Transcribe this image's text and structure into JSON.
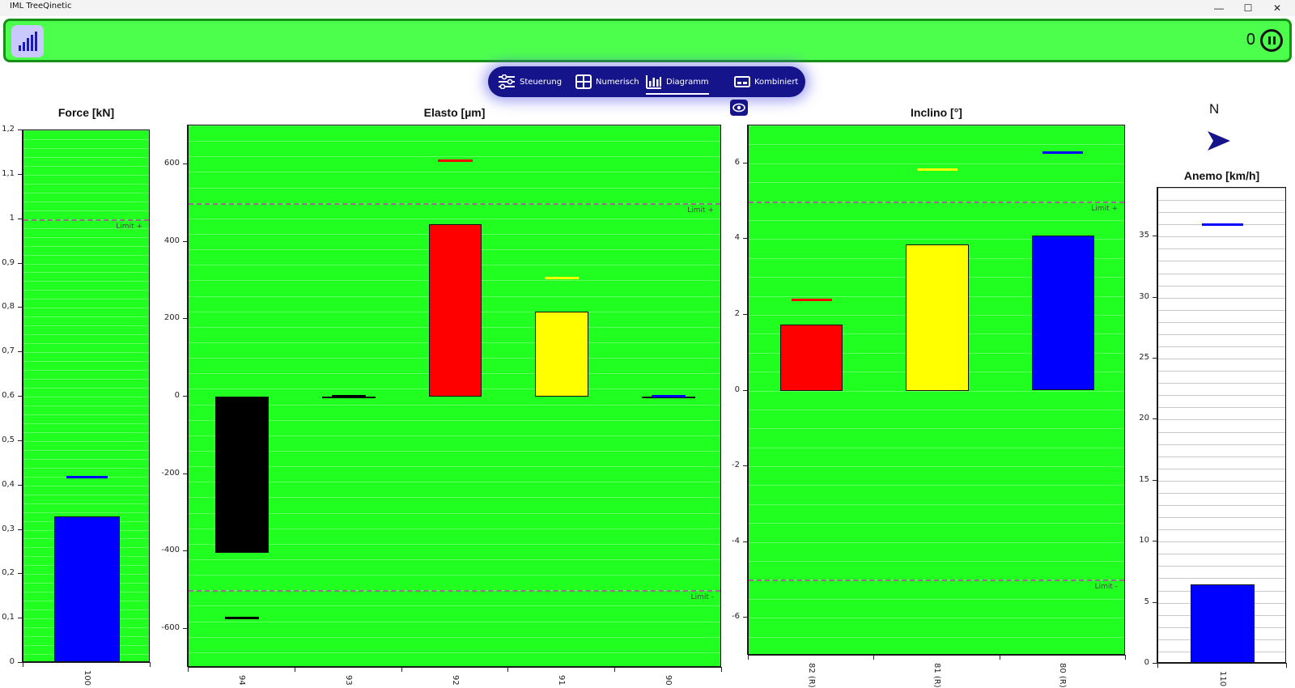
{
  "window": {
    "title": "IML TreeQinetic",
    "controls": [
      "—",
      "☐",
      "✕"
    ]
  },
  "status": {
    "counter": "0"
  },
  "nav": {
    "tabs": [
      {
        "label": "Steuerung",
        "icon": "sliders-icon",
        "active": false
      },
      {
        "label": "Numerisch",
        "icon": "grid-icon",
        "active": false
      },
      {
        "label": "Diagramm",
        "icon": "bar-chart-icon",
        "active": true
      },
      {
        "label": "Kombiniert",
        "icon": "combined-icon",
        "active": false
      }
    ]
  },
  "compass": {
    "label": "N"
  },
  "colors": {
    "plot_bg": "#20ff20",
    "status_bg": "#4dff4d",
    "nav_bg": "#16148a"
  },
  "chart_data": [
    {
      "type": "bar",
      "title": "Force [kN]",
      "categories": [
        "100"
      ],
      "series": [
        {
          "values": [
            0.33
          ],
          "colors": [
            "#0000ff"
          ]
        }
      ],
      "max_markers": [
        0.42
      ],
      "marker_colors": [
        "#0000ff"
      ],
      "ylim": [
        0,
        1.2
      ],
      "yticks": [
        "0",
        "0,1",
        "0,2",
        "0,3",
        "0,4",
        "0,5",
        "0,6",
        "0,7",
        "0,8",
        "0,9",
        "1",
        "1,1",
        "1,2"
      ],
      "limits": [
        {
          "value": 1.0,
          "label": "Limit +"
        }
      ],
      "grid": true
    },
    {
      "type": "bar",
      "title": "Elasto [µm]",
      "categories": [
        "94",
        "93",
        "92",
        "91",
        "90"
      ],
      "series": [
        {
          "values": [
            -403,
            0,
            445,
            220,
            0
          ],
          "colors": [
            "#000000",
            "#000000",
            "#ff0000",
            "#ffff00",
            "#0000ff"
          ]
        }
      ],
      "max_markers": [
        -570,
        2,
        610,
        308,
        2
      ],
      "marker_colors": [
        "#000000",
        "#000000",
        "#ff0000",
        "#ffff00",
        "#0000ff"
      ],
      "ylim": [
        -700,
        700
      ],
      "yticks": [
        "-600",
        "-400",
        "-200",
        "0",
        "200",
        "400",
        "600"
      ],
      "limits": [
        {
          "value": 500,
          "label": "Limit +"
        },
        {
          "value": -500,
          "label": "Limit -"
        }
      ],
      "grid": true
    },
    {
      "type": "bar",
      "title": "Inclino [°]",
      "categories": [
        "82 (R)",
        "81 (R)",
        "80 (R)"
      ],
      "series": [
        {
          "values": [
            1.75,
            3.85,
            4.1
          ],
          "colors": [
            "#ff0000",
            "#ffff00",
            "#0000ff"
          ]
        }
      ],
      "max_markers": [
        2.4,
        5.85,
        6.3
      ],
      "marker_colors": [
        "#ff0000",
        "#ffff00",
        "#0000ff"
      ],
      "ylim": [
        -7,
        7
      ],
      "yticks": [
        "-6",
        "-4",
        "-2",
        "0",
        "2",
        "4",
        "6"
      ],
      "limits": [
        {
          "value": 5,
          "label": "Limit +"
        },
        {
          "value": -5,
          "label": "Limit -"
        }
      ],
      "grid": true
    },
    {
      "type": "bar",
      "title": "Anemo [km/h]",
      "categories": [
        "110"
      ],
      "series": [
        {
          "values": [
            6.5
          ],
          "colors": [
            "#0000ff"
          ]
        }
      ],
      "max_markers": [
        36
      ],
      "marker_colors": [
        "#0000ff"
      ],
      "ylim": [
        0,
        39
      ],
      "yticks": [
        "0",
        "5",
        "10",
        "15",
        "20",
        "25",
        "30",
        "35"
      ],
      "limits": [],
      "grid": true
    }
  ]
}
